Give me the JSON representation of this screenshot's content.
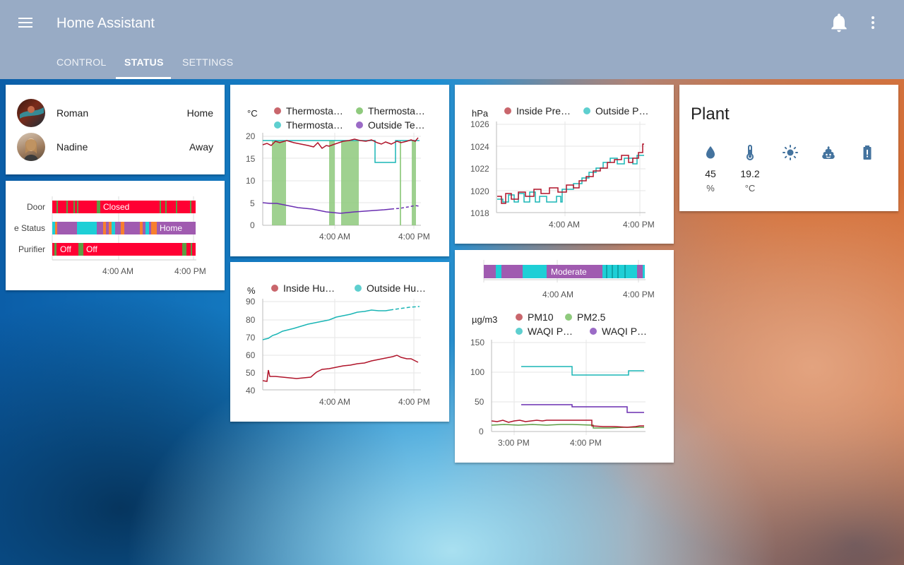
{
  "app": {
    "title": "Home Assistant"
  },
  "tabs": [
    {
      "label": "CONTROL"
    },
    {
      "label": "STATUS"
    },
    {
      "label": "SETTINGS"
    }
  ],
  "icons": {
    "menu": "menu-icon",
    "notifications": "bell-icon",
    "more": "dots-vertical-icon"
  },
  "people": [
    {
      "name": "Roman",
      "state": "Home"
    },
    {
      "name": "Nadine",
      "state": "Away"
    }
  ],
  "timeline": {
    "rows": [
      {
        "label": "Door",
        "state_label": "Closed"
      },
      {
        "label": "e Status",
        "state_label": "Home"
      },
      {
        "label": "Purifier",
        "state_label_1": "Off",
        "state_label_2": "Off"
      }
    ],
    "x_ticks": [
      "4:00 AM",
      "4:00 PM"
    ],
    "colors": {
      "red": "#ff0033",
      "green": "#5c9e43",
      "purple": "#a05bb0",
      "cyan": "#1ecfd6",
      "orange": "#f77f2f"
    }
  },
  "temp_chart": {
    "unit": "°C",
    "legend": [
      "Thermosta…",
      "Thermosta…",
      "Thermosta…",
      "Outside Te…"
    ],
    "y_ticks": [
      "20",
      "15",
      "10",
      "5",
      "0"
    ],
    "x_ticks": [
      "4:00 AM",
      "4:00 PM"
    ],
    "colors": [
      "#c9666c",
      "#8fca7d",
      "#5ecfcf",
      "#9b6bc6"
    ]
  },
  "humidity_chart": {
    "unit": "%",
    "legend": [
      "Inside Hu…",
      "Outside Hu…"
    ],
    "y_ticks": [
      "90",
      "80",
      "70",
      "60",
      "50",
      "40"
    ],
    "x_ticks": [
      "4:00 AM",
      "4:00 PM"
    ],
    "colors": [
      "#c9666c",
      "#5ecfcf"
    ]
  },
  "pressure_chart": {
    "unit": "hPa",
    "legend": [
      "Inside Pre…",
      "Outside P…"
    ],
    "y_ticks": [
      "1026",
      "1024",
      "1022",
      "1020",
      "1018"
    ],
    "x_ticks": [
      "4:00 AM",
      "4:00 PM"
    ],
    "colors": [
      "#c9666c",
      "#5ecfcf"
    ]
  },
  "air_quality_timeline": {
    "state_label": "Moderate",
    "x_ticks": [
      "4:00 AM",
      "4:00 PM"
    ]
  },
  "pm_chart": {
    "unit": "µg/m3",
    "legend": [
      "PM10",
      "PM2.5",
      "WAQI P…",
      "WAQI P…"
    ],
    "y_ticks": [
      "150",
      "100",
      "50",
      "0"
    ],
    "x_ticks": [
      "3:00 PM",
      "4:00 PM"
    ],
    "colors": [
      "#c9666c",
      "#8fca7d",
      "#5ecfcf",
      "#9b6bc6"
    ]
  },
  "plant": {
    "title": "Plant",
    "icons": [
      "water-drop-icon",
      "thermometer-icon",
      "sun-icon",
      "poop-icon",
      "battery-icon"
    ],
    "moisture": {
      "value": "45",
      "unit": "%"
    },
    "temperature": {
      "value": "19.2",
      "unit": "°C"
    },
    "icon_color": "#44739e"
  }
}
